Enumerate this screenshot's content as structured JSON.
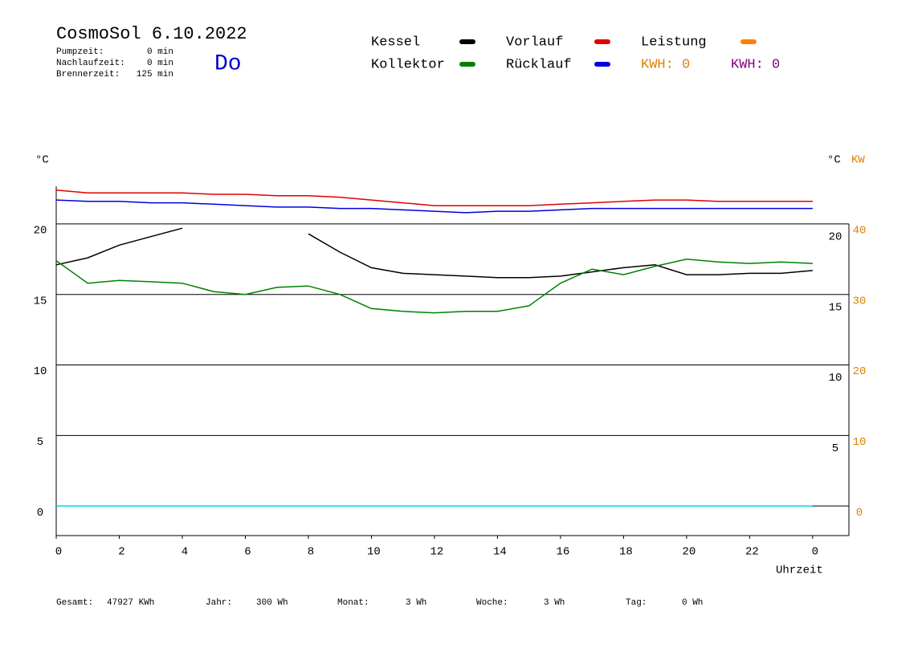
{
  "chart_data": {
    "type": "line",
    "title": "CosmoSol 6.10.2022",
    "weekday": "Do",
    "info": [
      {
        "label": "Pumpzeit:",
        "value": "0 min"
      },
      {
        "label": "Nachlaufzeit:",
        "value": "0 min"
      },
      {
        "label": "Brennerzeit:",
        "value": "125 min"
      }
    ],
    "kwh_labels": [
      {
        "text": "KWH: 0",
        "color": "#e08000"
      },
      {
        "text": "KWH: 0",
        "color": "#800080"
      }
    ],
    "y_label": "°C",
    "y_right_label": "°C",
    "y2_label": "KW",
    "x_label": "Uhrzeit",
    "x": [
      0,
      1,
      2,
      3,
      4,
      5,
      6,
      7,
      8,
      9,
      10,
      11,
      12,
      13,
      14,
      15,
      16,
      17,
      18,
      19,
      20,
      21,
      22,
      23,
      24
    ],
    "series": [
      {
        "name": "Kessel",
        "color": "#000000",
        "values": [
          17.1,
          17.6,
          18.5,
          19.1,
          19.7,
          null,
          null,
          null,
          19.3,
          18.0,
          16.9,
          16.5,
          16.4,
          16.3,
          16.2,
          16.2,
          16.3,
          16.6,
          16.9,
          17.1,
          16.4,
          16.4,
          16.5,
          16.5,
          16.7
        ]
      },
      {
        "name": "Vorlauf",
        "color": "#e00000",
        "values": [
          22.4,
          22.2,
          22.2,
          22.2,
          22.2,
          22.1,
          22.1,
          22.0,
          22.0,
          21.9,
          21.7,
          21.5,
          21.3,
          21.3,
          21.3,
          21.3,
          21.4,
          21.5,
          21.6,
          21.7,
          21.7,
          21.6,
          21.6,
          21.6,
          21.6
        ]
      },
      {
        "name": "Leistung",
        "color": "#ff8000",
        "line_color": "#00e0e0",
        "axis": "y2",
        "values": [
          0,
          0,
          0,
          0,
          0,
          0,
          0,
          0,
          0,
          0,
          0,
          0,
          0,
          0,
          0,
          0,
          0,
          0,
          0,
          0,
          0,
          0,
          0,
          0,
          0
        ]
      },
      {
        "name": "Kollektor",
        "color": "#008000",
        "values": [
          17.4,
          15.8,
          16.0,
          15.9,
          15.8,
          15.2,
          15.0,
          15.5,
          15.6,
          15.0,
          14.0,
          13.8,
          13.7,
          13.8,
          13.8,
          14.2,
          15.8,
          16.8,
          16.4,
          17.0,
          17.5,
          17.3,
          17.2,
          17.3,
          17.2
        ]
      },
      {
        "name": "Rücklauf",
        "color": "#0000e0",
        "values": [
          21.7,
          21.6,
          21.6,
          21.5,
          21.5,
          21.4,
          21.3,
          21.2,
          21.2,
          21.1,
          21.1,
          21.0,
          20.9,
          20.8,
          20.9,
          20.9,
          21.0,
          21.1,
          21.1,
          21.1,
          21.1,
          21.1,
          21.1,
          21.1,
          21.1
        ]
      }
    ],
    "xlim": [
      0,
      25.15
    ],
    "xticks": [
      0,
      2,
      4,
      6,
      8,
      10,
      12,
      14,
      16,
      18,
      20,
      22,
      {
        "value": 24,
        "label": "0"
      }
    ],
    "ylim": [
      -2.1,
      22.9
    ],
    "yticks": [
      20,
      15,
      10,
      5,
      0
    ],
    "yticks_right": [
      20,
      15,
      10,
      5
    ],
    "y2lim": [
      -4.2,
      45.8
    ],
    "y2ticks": [
      40,
      30,
      20,
      10,
      0
    ],
    "y2_color": "#e08000",
    "grid": true,
    "footer": [
      {
        "label": "Gesamt:",
        "value": "47927 KWh"
      },
      {
        "label": "Jahr:",
        "value": "300 Wh"
      },
      {
        "label": "Monat:",
        "value": "3 Wh"
      },
      {
        "label": "Woche:",
        "value": "3 Wh"
      },
      {
        "label": "Tag:",
        "value": "0 Wh"
      }
    ]
  }
}
